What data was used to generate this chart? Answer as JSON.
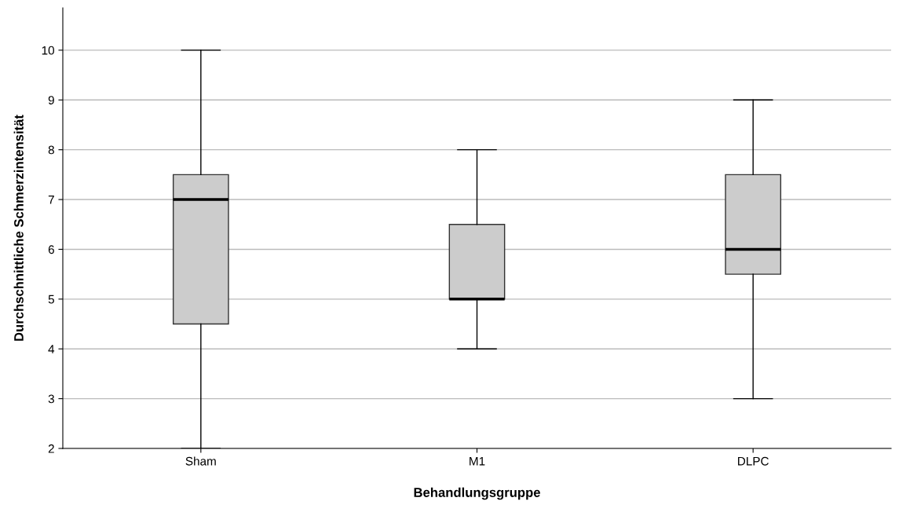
{
  "chart_data": {
    "type": "box",
    "xlabel": "Behandlungsgruppe",
    "ylabel": "Durchschnittliche Schmerzintensität",
    "categories": [
      "Sham",
      "M1",
      "DLPC"
    ],
    "boxes": [
      {
        "low": 2,
        "q1": 4.5,
        "median": 7,
        "q3": 7.5,
        "high": 10
      },
      {
        "low": 4,
        "q1": 5,
        "median": 5,
        "q3": 6.5,
        "high": 8
      },
      {
        "low": 3,
        "q1": 5.5,
        "median": 6,
        "q3": 7.5,
        "high": 9
      }
    ],
    "color": "#cccccc",
    "ylim": [
      2,
      10.85
    ],
    "yticks": [
      2,
      3,
      4,
      5,
      6,
      7,
      8,
      9,
      10
    ],
    "grid": "y"
  }
}
